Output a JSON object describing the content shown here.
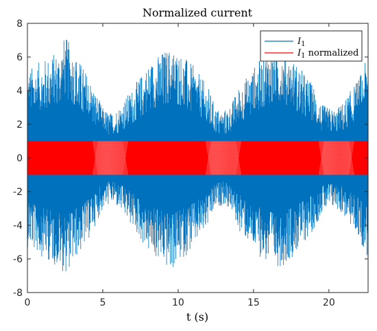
{
  "chart_data": {
    "type": "line",
    "title": "Normalized current",
    "xlabel": "t (s)",
    "ylabel": "",
    "xlim": [
      0,
      22.6
    ],
    "ylim": [
      -8,
      8
    ],
    "xticks": [
      0,
      5,
      10,
      15,
      20
    ],
    "yticks": [
      -8,
      -6,
      -4,
      -2,
      0,
      2,
      4,
      6,
      8
    ],
    "grid": false,
    "legend_position": "top-right",
    "series": [
      {
        "name": "I_1",
        "legend_main": "I",
        "legend_sub": "1",
        "legend_suffix": "",
        "color": "#0072BD",
        "description": "envelope of dense oscillation (upper peak values)",
        "x": [
          0,
          1,
          2,
          2.5,
          3,
          4,
          4.5,
          5,
          5.5,
          6,
          7,
          8,
          9,
          9.5,
          10,
          11,
          12,
          12.5,
          13,
          13.5,
          14,
          15,
          16,
          16.5,
          17,
          18,
          19,
          19.5,
          20,
          20.5,
          21,
          22,
          22.6
        ],
        "upper": [
          5.3,
          5.8,
          6.4,
          7.3,
          6.5,
          5.0,
          4.0,
          3.0,
          2.7,
          3.0,
          4.2,
          5.6,
          6.4,
          6.6,
          6.4,
          5.5,
          4.2,
          3.0,
          2.8,
          3.2,
          4.2,
          5.4,
          6.5,
          6.7,
          6.5,
          5.5,
          4.3,
          3.2,
          3.0,
          2.9,
          3.4,
          4.8,
          6.1
        ],
        "lower": [
          -5.3,
          -5.9,
          -6.5,
          -6.9,
          -6.3,
          -5.0,
          -4.0,
          -3.1,
          -2.7,
          -3.0,
          -4.2,
          -5.6,
          -6.4,
          -6.8,
          -6.3,
          -5.4,
          -4.1,
          -3.0,
          -2.8,
          -3.1,
          -4.3,
          -5.5,
          -6.4,
          -6.5,
          -6.4,
          -5.5,
          -4.3,
          -3.3,
          -3.1,
          -3.0,
          -3.5,
          -4.8,
          -6.1
        ]
      },
      {
        "name": "I_1 normalized",
        "legend_main": "I",
        "legend_sub": "1",
        "legend_suffix": " normalized",
        "color": "#FF0000",
        "description": "normalized oscillation bounded in [-1, 1]",
        "upper_value": 1,
        "lower_value": -1,
        "dips_x": [
          5.5,
          13.0,
          20.5
        ]
      }
    ]
  }
}
